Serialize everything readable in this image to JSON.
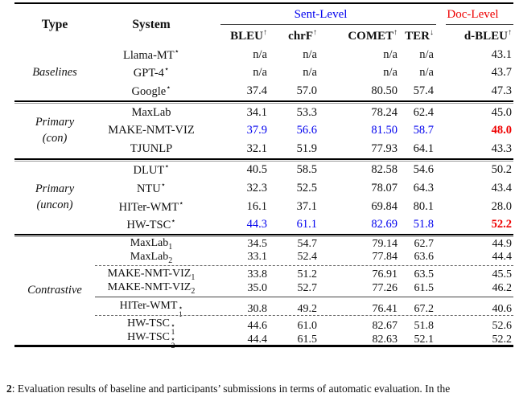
{
  "colors": {
    "accent_blue": "#0000EE",
    "accent_red": "#EE0000"
  },
  "header": {
    "type_label": "Type",
    "system_label": "System",
    "group_sent": {
      "label": "Sent-Level"
    },
    "group_doc": {
      "label": "Doc-Level"
    },
    "columns": [
      {
        "label": "BLEU",
        "dir": "↑"
      },
      {
        "label": "chrF",
        "dir": "↑"
      },
      {
        "label": "COMET",
        "dir": "↑"
      },
      {
        "label": "TER",
        "dir": "↓"
      },
      {
        "label": "d-BLEU",
        "dir": "↑"
      }
    ]
  },
  "sections": [
    {
      "type_lines": [
        "Baselines"
      ],
      "tight": false,
      "groups": [
        {
          "rows": [
            {
              "name": "Llama-MT",
              "sup": "⋆",
              "values": [
                "n/a",
                "n/a",
                "n/a",
                "n/a",
                "43.1"
              ]
            },
            {
              "name": "GPT-4",
              "sup": "⋆",
              "values": [
                "n/a",
                "n/a",
                "n/a",
                "n/a",
                "43.7"
              ]
            },
            {
              "name": "Google",
              "sup": "⋆",
              "values": [
                "37.4",
                "57.0",
                "80.50",
                "57.4",
                "47.3"
              ]
            }
          ]
        }
      ]
    },
    {
      "type_lines": [
        "Primary",
        "(con)"
      ],
      "tight": false,
      "groups": [
        {
          "rows": [
            {
              "name": "MaxLab",
              "values": [
                "34.1",
                "53.3",
                "78.24",
                "62.4",
                "45.0"
              ]
            },
            {
              "name": "MAKE-NMT-VIZ",
              "values": [
                "37.9",
                "56.6",
                "81.50",
                "58.7",
                "48.0"
              ],
              "styles": [
                "blue",
                "blue",
                "blue",
                "blue",
                "redbold"
              ]
            },
            {
              "name": "TJUNLP",
              "values": [
                "32.1",
                "51.9",
                "77.93",
                "64.1",
                "43.3"
              ]
            }
          ]
        }
      ]
    },
    {
      "type_lines": [
        "Primary",
        "(uncon)"
      ],
      "tight": false,
      "groups": [
        {
          "rows": [
            {
              "name": "DLUT",
              "sup": "⋆",
              "values": [
                "40.5",
                "58.5",
                "82.58",
                "54.6",
                "50.2"
              ]
            },
            {
              "name": "NTU",
              "sup": "⋆",
              "values": [
                "32.3",
                "52.5",
                "78.07",
                "64.3",
                "43.4"
              ]
            },
            {
              "name": "HITer-WMT",
              "sup": "⋆",
              "values": [
                "16.1",
                "37.1",
                "69.84",
                "80.1",
                "28.0"
              ]
            },
            {
              "name": "HW-TSC",
              "sup": "⋆",
              "values": [
                "44.3",
                "61.1",
                "82.69",
                "51.8",
                "52.2"
              ],
              "styles": [
                "blue",
                "blue",
                "blue",
                "blue",
                "redbold"
              ]
            }
          ]
        }
      ]
    },
    {
      "type_lines": [
        "Contrastive"
      ],
      "tight": true,
      "groups": [
        {
          "rows": [
            {
              "name": "MaxLab",
              "sub": "1",
              "values": [
                "34.5",
                "54.7",
                "79.14",
                "62.7",
                "44.9"
              ]
            },
            {
              "name": "MaxLab",
              "sub": "2",
              "values": [
                "33.1",
                "52.4",
                "77.84",
                "63.6",
                "44.4"
              ]
            }
          ]
        },
        {
          "sep_before": "dashed",
          "rows": [
            {
              "name": "MAKE-NMT-VIZ",
              "sub": "1",
              "values": [
                "33.8",
                "51.2",
                "76.91",
                "63.5",
                "45.5"
              ]
            },
            {
              "name": "MAKE-NMT-VIZ",
              "sub": "2",
              "values": [
                "35.0",
                "52.7",
                "77.26",
                "61.5",
                "46.2"
              ]
            }
          ]
        },
        {
          "sep_before": "solid",
          "rows": [
            {
              "name": "HITer-WMT",
              "stack": {
                "sup": "⋆",
                "sub": "1"
              },
              "values": [
                "30.8",
                "49.2",
                "76.41",
                "67.2",
                "40.6"
              ]
            }
          ]
        },
        {
          "sep_before": "dashed",
          "rows": [
            {
              "name": "HW-TSC",
              "stack": {
                "sup": "⋆",
                "sub": "1"
              },
              "values": [
                "44.6",
                "61.0",
                "82.67",
                "51.8",
                "52.6"
              ]
            },
            {
              "name": "HW-TSC",
              "stack": {
                "sup": "⋆",
                "sub": "2"
              },
              "values": [
                "44.4",
                "61.5",
                "82.63",
                "52.1",
                "52.2"
              ]
            }
          ]
        }
      ]
    }
  ],
  "caption": {
    "number": "2",
    "text": ": Evaluation results of baseline and participants’ submissions in terms of automatic evaluation. In the"
  }
}
